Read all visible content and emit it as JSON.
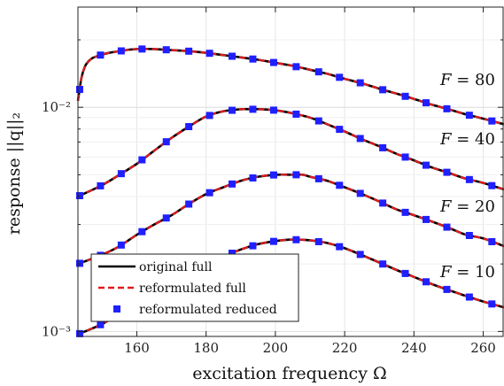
{
  "chart_data": {
    "type": "line",
    "title": "",
    "xlabel": "excitation frequency Ω",
    "ylabel": "response ||q||₂",
    "xlim": [
      143,
      266
    ],
    "ylim": [
      0.00095,
      0.028
    ],
    "yscale": "log",
    "grid": true,
    "x_ticks": [
      160,
      180,
      200,
      220,
      240,
      260
    ],
    "x_tick_labels": [
      "160",
      "180",
      "200",
      "220",
      "240",
      "260"
    ],
    "y_ticks": [
      0.001,
      0.01
    ],
    "y_tick_labels": [
      "10⁻³",
      "10⁻²"
    ],
    "legend": {
      "placement": "bottom-left",
      "entries": [
        {
          "label": "original full",
          "style": "solid",
          "color": "#000000"
        },
        {
          "label": "reformulated full",
          "style": "dashed",
          "color": "#e41a1c"
        },
        {
          "label": "reformulated reduced",
          "style": "marker",
          "color": "#1f1fff"
        }
      ]
    },
    "annotations": [
      "F = 80",
      "F = 40",
      "F = 20",
      "F = 10"
    ],
    "series": [
      {
        "annotation": "F = 80",
        "x": [
          143,
          144,
          145,
          146,
          147,
          148,
          150,
          152,
          154,
          156,
          158,
          160,
          162,
          165,
          170,
          175,
          180,
          185,
          190,
          195,
          200,
          205,
          210,
          215,
          220,
          225,
          230,
          235,
          240,
          245,
          250,
          255,
          260,
          266
        ],
        "y": [
          0.0107,
          0.0135,
          0.0152,
          0.016,
          0.0165,
          0.0168,
          0.0172,
          0.0175,
          0.0177,
          0.0179,
          0.0181,
          0.0182,
          0.0182,
          0.0182,
          0.018,
          0.0178,
          0.0175,
          0.0171,
          0.0167,
          0.0163,
          0.0158,
          0.0153,
          0.0147,
          0.0141,
          0.0134,
          0.0128,
          0.0121,
          0.0115,
          0.0109,
          0.0103,
          0.0098,
          0.0093,
          0.0089,
          0.0084
        ]
      },
      {
        "annotation": "F = 40",
        "x": [
          143,
          150,
          155,
          160,
          165,
          170,
          175,
          180,
          185,
          190,
          193,
          196,
          200,
          205,
          210,
          215,
          220,
          225,
          230,
          235,
          240,
          245,
          250,
          255,
          260,
          266
        ],
        "y": [
          0.004,
          0.0045,
          0.005,
          0.0056,
          0.0064,
          0.0073,
          0.0082,
          0.0091,
          0.0096,
          0.0098,
          0.0098,
          0.0098,
          0.0097,
          0.0094,
          0.009,
          0.0084,
          0.0078,
          0.0072,
          0.0067,
          0.0062,
          0.0058,
          0.0054,
          0.0051,
          0.0048,
          0.0046,
          0.0043
        ]
      },
      {
        "annotation": "F = 20",
        "x": [
          143,
          150,
          155,
          160,
          165,
          170,
          175,
          180,
          185,
          190,
          195,
          200,
          205,
          208,
          210,
          215,
          220,
          225,
          230,
          235,
          240,
          245,
          250,
          255,
          260,
          266
        ],
        "y": [
          0.002,
          0.0022,
          0.0024,
          0.0027,
          0.003,
          0.0033,
          0.0037,
          0.0041,
          0.0044,
          0.0047,
          0.0049,
          0.005,
          0.005,
          0.005,
          0.0049,
          0.0047,
          0.0044,
          0.0041,
          0.0038,
          0.0035,
          0.0033,
          0.0031,
          0.0029,
          0.0027,
          0.0026,
          0.0024
        ]
      },
      {
        "annotation": "F = 10",
        "x": [
          143,
          150,
          155,
          160,
          165,
          170,
          175,
          180,
          185,
          190,
          195,
          200,
          205,
          210,
          215,
          220,
          225,
          230,
          235,
          240,
          245,
          250,
          255,
          260,
          266
        ],
        "y": [
          0.00097,
          0.00108,
          0.0012,
          0.00133,
          0.00148,
          0.00164,
          0.0018,
          0.00198,
          0.00215,
          0.00232,
          0.00245,
          0.00253,
          0.00257,
          0.00255,
          0.00248,
          0.00235,
          0.00219,
          0.00203,
          0.00188,
          0.00175,
          0.00163,
          0.00153,
          0.00144,
          0.00136,
          0.00128
        ]
      }
    ],
    "marker_x": [
      143.5,
      149.5,
      155.5,
      161.5,
      168.5,
      175,
      181,
      187.5,
      193.5,
      199.5,
      206,
      212.5,
      218.5,
      224.5,
      231,
      237.5,
      243.5,
      249.5,
      256,
      262.5
    ]
  }
}
